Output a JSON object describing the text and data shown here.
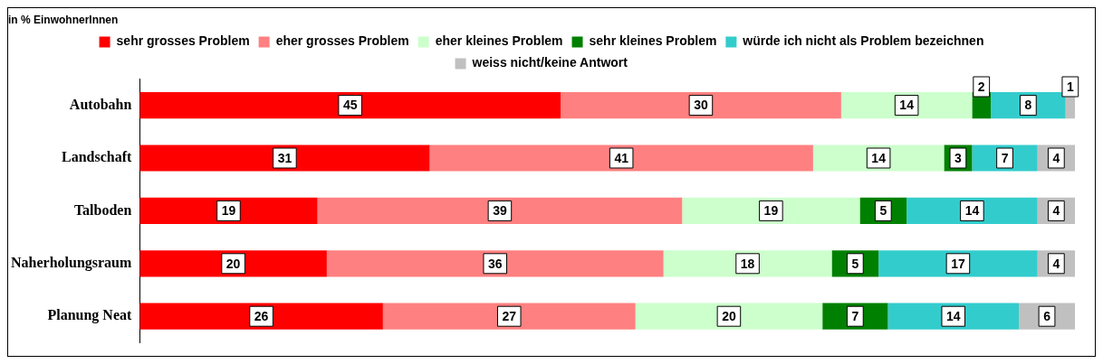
{
  "chart_data": {
    "type": "bar",
    "orientation": "horizontal",
    "stacked": true,
    "title": "in % EinwohnerInnen",
    "categories": [
      "Autobahn",
      "Landschaft",
      "Talboden",
      "Naherholungsraum",
      "Planung Neat"
    ],
    "series": [
      {
        "name": "sehr grosses Problem",
        "color": "#ff0000",
        "values": [
          45,
          31,
          19,
          20,
          26
        ]
      },
      {
        "name": "eher grosses Problem",
        "color": "#ff8080",
        "values": [
          30,
          41,
          39,
          36,
          27
        ]
      },
      {
        "name": "eher kleines Problem",
        "color": "#ccffcc",
        "values": [
          14,
          14,
          19,
          18,
          20
        ]
      },
      {
        "name": "sehr kleines Problem",
        "color": "#008000",
        "values": [
          2,
          3,
          5,
          5,
          7
        ]
      },
      {
        "name": "würde ich nicht als Problem bezeichnen",
        "color": "#33cccc",
        "values": [
          8,
          7,
          14,
          17,
          14
        ]
      },
      {
        "name": "weiss nicht/keine Antwort",
        "color": "#c0c0c0",
        "values": [
          1,
          4,
          4,
          4,
          6
        ]
      }
    ],
    "xlim": [
      0,
      100
    ],
    "tick_labels": "y",
    "data_labels": true,
    "legend": "top",
    "grid": false
  }
}
